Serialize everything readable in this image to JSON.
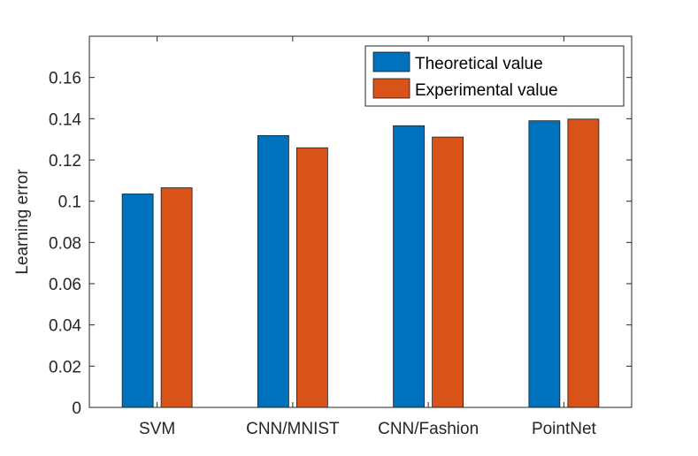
{
  "chart_data": {
    "type": "bar",
    "title": "",
    "xlabel": "",
    "ylabel": "Learning error",
    "categories": [
      "SVM",
      "CNN/MNIST",
      "CNN/Fashion",
      "PointNet"
    ],
    "series": [
      {
        "name": "Theoretical value",
        "color": "#0072BD",
        "values": [
          0.1035,
          0.1318,
          0.1366,
          0.139
        ]
      },
      {
        "name": "Experimental value",
        "color": "#D95319",
        "values": [
          0.1065,
          0.1259,
          0.1311,
          0.1398
        ]
      }
    ],
    "ylim": [
      0,
      0.18
    ],
    "yticks": [
      0,
      0.02,
      0.04,
      0.06,
      0.08,
      0.1,
      0.12,
      0.14,
      0.16
    ],
    "ytick_labels": [
      "0",
      "0.02",
      "0.04",
      "0.06",
      "0.08",
      "0.1",
      "0.12",
      "0.14",
      "0.16"
    ],
    "grid": false,
    "legend_position": "top-right"
  }
}
